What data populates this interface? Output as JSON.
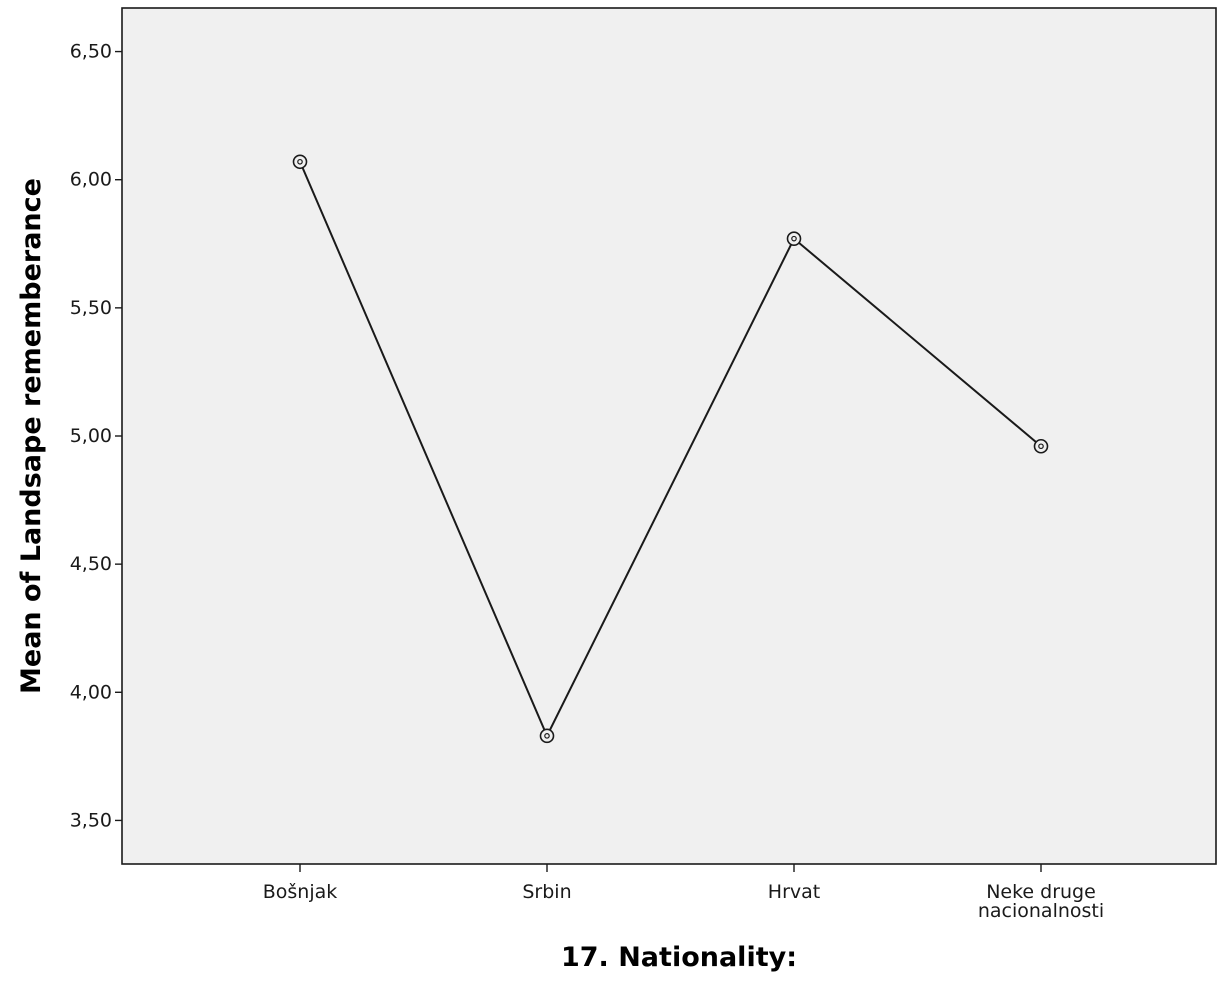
{
  "chart_data": {
    "type": "line",
    "xlabel": "17. Nationality:",
    "ylabel": "Mean of Landsape rememberance",
    "categories": [
      [
        "Bošnjak"
      ],
      [
        "Srbin"
      ],
      [
        "Hrvat"
      ],
      [
        "Neke druge",
        "nacionalnosti"
      ]
    ],
    "values": [
      6.07,
      3.83,
      5.77,
      4.96
    ],
    "yticks": [
      3.5,
      4.0,
      4.5,
      5.0,
      5.5,
      6.0,
      6.5
    ],
    "ytick_labels": [
      "3,50",
      "4,00",
      "4,50",
      "5,00",
      "5,50",
      "6,00",
      "6,50"
    ],
    "ylim": [
      3.33,
      6.67
    ],
    "grid": false,
    "marker": "circle-dot",
    "colors": {
      "plot_background": "#f0f0f0",
      "line": "#1a1a1a",
      "frame": "#1a1a1a"
    }
  }
}
